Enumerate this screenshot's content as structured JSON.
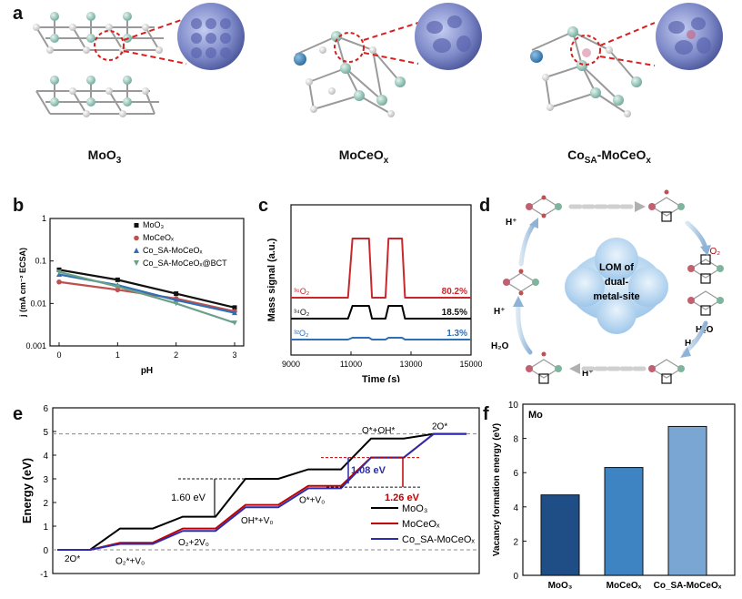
{
  "panels": {
    "a": "a",
    "b": "b",
    "c": "c",
    "d": "d",
    "e": "e",
    "f": "f"
  },
  "panel_a": {
    "labels": [
      {
        "base": "MoO",
        "sub": "3",
        "rest": ""
      },
      {
        "base": "MoCeO",
        "sub": "x",
        "rest": ""
      },
      {
        "base": "Co",
        "sub": "SA",
        "rest": "-MoCeO",
        "sub2": "x"
      }
    ]
  },
  "panel_d": {
    "center_text": [
      "LOM of",
      "dual-",
      "metal-site"
    ],
    "labels": {
      "h_plus": "H⁺",
      "o2": "³⁶O₂",
      "h2o": "H₂O"
    }
  },
  "colors": {
    "moo3": "#000000",
    "moceox": "#c00000",
    "co_sa": "#2c2cae",
    "mass36": "#c8282c",
    "mass34": "#000000",
    "mass32": "#2e6fb5",
    "bar1": "#1f4e87",
    "bar2": "#3f84c2",
    "bar3": "#7aa6d4",
    "legend_b_moo3": "#555555",
    "legend_b_moceox": "#c0504d",
    "legend_b_cosa": "#2e6fb5",
    "legend_b_bct": "#6aa089"
  },
  "chart_data": [
    {
      "id": "b",
      "type": "line",
      "ylabel": "j (mA cm⁻² ECSA)",
      "xlabel": "pH",
      "yscale": "log",
      "ylim": [
        0.001,
        1
      ],
      "xlim": [
        0,
        3
      ],
      "x_ticks": [
        0,
        1,
        2,
        3
      ],
      "y_ticks": [
        "1",
        "0.1",
        "0.01",
        "0.001"
      ],
      "x": [
        0,
        1,
        2,
        3
      ],
      "series": [
        {
          "name": "MoO₃",
          "values": [
            0.062,
            0.036,
            0.017,
            0.008
          ]
        },
        {
          "name": "MoCeOₓ",
          "values": [
            0.032,
            0.021,
            0.013,
            0.0065
          ]
        },
        {
          "name": "Co_SA-MoCeOₓ",
          "values": [
            0.048,
            0.027,
            0.012,
            0.006
          ]
        },
        {
          "name": "Co_SA-MoCeOₓ@BCT",
          "values": [
            0.055,
            0.025,
            0.01,
            0.0035
          ]
        }
      ]
    },
    {
      "id": "c",
      "type": "line",
      "ylabel": "Mass signal (a.u.)",
      "xlabel": "Time (s)",
      "xlim": [
        9000,
        15000
      ],
      "x_ticks": [
        9000,
        11000,
        13000,
        15000
      ],
      "series": [
        {
          "name": "³⁶O₂",
          "percent": "80.2%"
        },
        {
          "name": "³⁴O₂",
          "percent": "18.5%"
        },
        {
          "name": "³²O₂",
          "percent": "1.3%"
        }
      ]
    },
    {
      "id": "e",
      "type": "line",
      "ylabel": "Energy (eV)",
      "ylim": [
        -1,
        6
      ],
      "y_ticks": [
        -1,
        0,
        1,
        2,
        3,
        4,
        5,
        6
      ],
      "steps": [
        "2O*",
        "O₂*+V₀",
        "O₂+2V₀",
        "OH*+V₀",
        "O*+V₀",
        "O*+OH*",
        "2O*"
      ],
      "series": [
        {
          "name": "MoO₃",
          "values": [
            0,
            0.9,
            1.4,
            3.0,
            3.4,
            4.7,
            4.9
          ]
        },
        {
          "name": "MoCeOₓ",
          "values": [
            0,
            0.3,
            0.9,
            1.9,
            2.7,
            3.9,
            4.9
          ]
        },
        {
          "name": "Co_SA-MoCeOₓ",
          "values": [
            0,
            0.25,
            0.8,
            1.8,
            2.6,
            3.9,
            4.9
          ]
        }
      ],
      "annotations": [
        "1.60 eV",
        "1.08 eV",
        "1.26 eV"
      ]
    },
    {
      "id": "f",
      "type": "bar",
      "ylabel": "Vacancy formation energy (eV)",
      "title": "Mo",
      "ylim": [
        0,
        10
      ],
      "y_ticks": [
        0,
        2,
        4,
        6,
        8,
        10
      ],
      "categories": [
        "MoO₃",
        "MoCeOₓ",
        "Co_SA-MoCeOₓ"
      ],
      "values": [
        4.7,
        6.3,
        8.7
      ]
    }
  ]
}
